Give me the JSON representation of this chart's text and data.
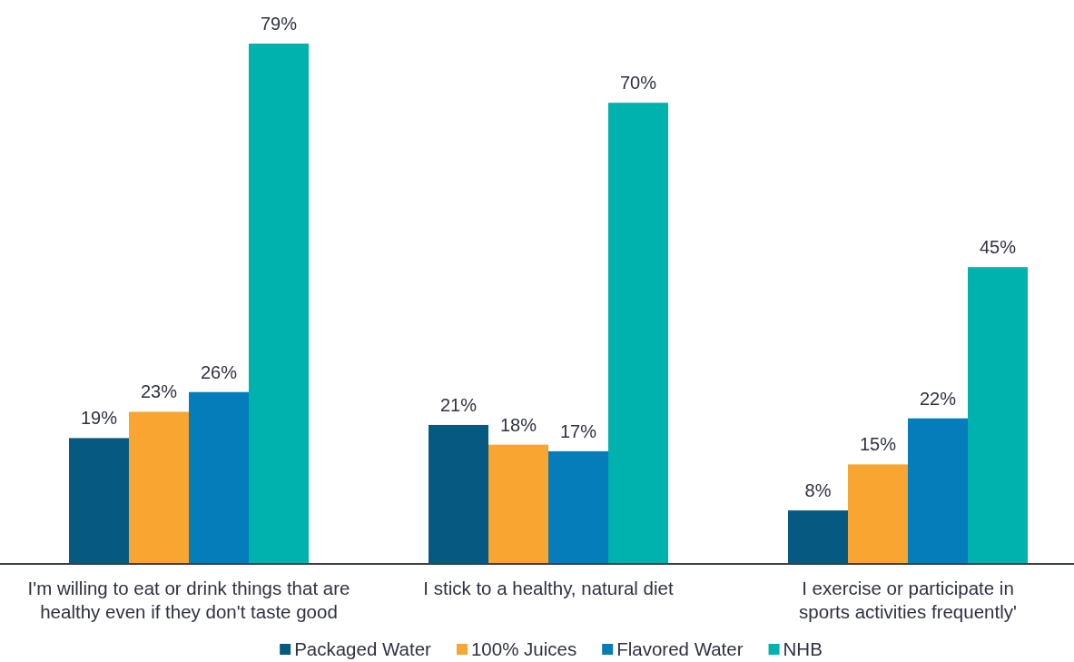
{
  "chart_data": {
    "type": "bar",
    "categories": [
      "I'm willing to eat or drink things that are\nhealthy even if they don't taste good",
      "I stick to a healthy, natural diet",
      "I exercise or participate in\nsports activities frequently'"
    ],
    "series": [
      {
        "name": "Packaged Water",
        "color": "#065a82",
        "values": [
          19,
          21,
          8
        ],
        "value_labels": [
          "19%",
          "21%",
          "8%"
        ]
      },
      {
        "name": "100% Juices",
        "color": "#f8a532",
        "values": [
          23,
          18,
          15
        ],
        "value_labels": [
          "23%",
          "18%",
          "15%"
        ]
      },
      {
        "name": "Flavored Water",
        "color": "#057dba",
        "values": [
          26,
          17,
          22
        ],
        "value_labels": [
          "26%",
          "17%",
          "22%"
        ]
      },
      {
        "name": "NHB",
        "color": "#00b2ae",
        "values": [
          79,
          70,
          45
        ],
        "value_labels": [
          "79%",
          "70%",
          "45%"
        ]
      }
    ],
    "legend": "bottom"
  }
}
